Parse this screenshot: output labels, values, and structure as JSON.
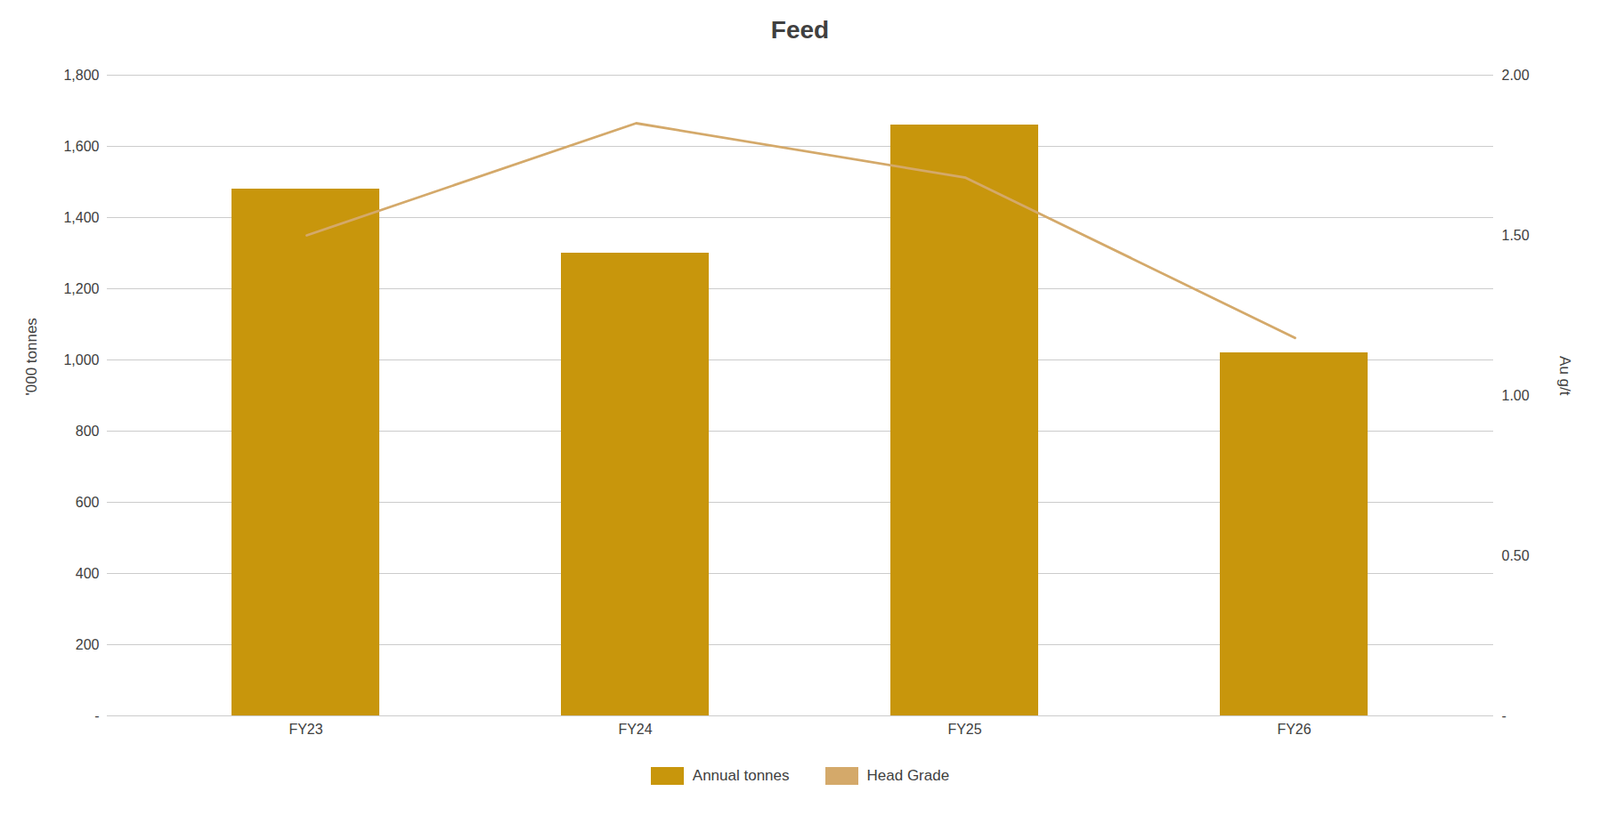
{
  "chart_data": {
    "type": "bar",
    "title": "Feed",
    "categories": [
      "FY23",
      "FY24",
      "FY25",
      "FY26"
    ],
    "series": [
      {
        "name": "Annual tonnes",
        "type": "bar",
        "color": "#C8960C",
        "values": [
          1480,
          1300,
          1660,
          1020
        ]
      },
      {
        "name": "Head Grade",
        "type": "line",
        "color": "#D4A96A",
        "axis": "y2",
        "values": [
          1.5,
          1.85,
          1.68,
          1.18
        ]
      }
    ],
    "ylabel": "'000 tonnes",
    "y2label": "Au g/t",
    "ylim": [
      0,
      1800
    ],
    "yticks": [
      {
        "value": 0,
        "label": "-"
      },
      200,
      400,
      600,
      800,
      {
        "value": 1000,
        "label": "1,000"
      },
      {
        "value": 1200,
        "label": "1,200"
      },
      {
        "value": 1400,
        "label": "1,400"
      },
      {
        "value": 1600,
        "label": "1,600"
      },
      {
        "value": 1800,
        "label": "1,800"
      }
    ],
    "y2lim": [
      0,
      2.0
    ],
    "y2ticks": [
      {
        "value": 0,
        "label": "-"
      },
      {
        "value": 0.5,
        "label": "0.50"
      },
      {
        "value": 1.0,
        "label": "1.00"
      },
      {
        "value": 1.5,
        "label": "1.50"
      },
      {
        "value": 2.0,
        "label": "2.00"
      }
    ],
    "grid": true,
    "legend": "bottom"
  }
}
